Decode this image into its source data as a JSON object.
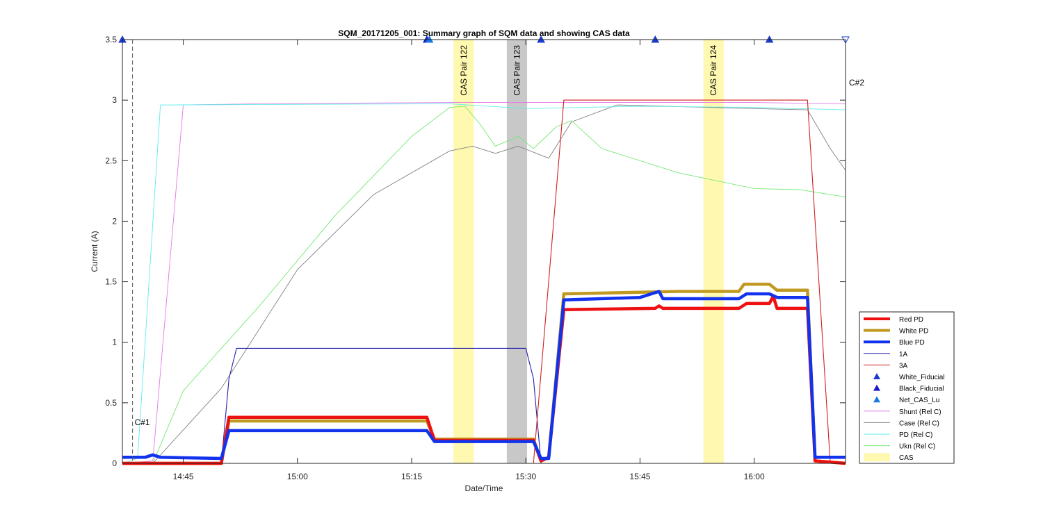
{
  "chart_data": {
    "type": "line",
    "title": "SQM_20171205_001: Summary graph of SQM data and showing CAS data",
    "xlabel": "Date/Time",
    "ylabel": "Current (A)",
    "xlim": [
      "14:37",
      "16:12"
    ],
    "ylim": [
      0,
      3.5
    ],
    "x_ticks": [
      "14:45",
      "15:00",
      "15:15",
      "15:30",
      "15:45",
      "16:00"
    ],
    "y_ticks": [
      0,
      0.5,
      1,
      1.5,
      2,
      2.5,
      3,
      3.5
    ],
    "y_tick_labels": [
      "0",
      "0.5",
      "1",
      "1.5",
      "2",
      "2.5",
      "3",
      "3.5"
    ],
    "grid": false,
    "legend_position": "bottom-right outside",
    "bands": [
      {
        "label": "CAS Pair 122",
        "start": "15:20:30",
        "end": "15:23:10",
        "color": "#fff8b0"
      },
      {
        "label": "CAS Pair 123",
        "start": "15:27:30",
        "end": "15:30:10",
        "color": "#c8c8c8"
      },
      {
        "label": "CAS Pair 124",
        "start": "15:53:20",
        "end": "15:56:00",
        "color": "#fff8b0"
      }
    ],
    "vlines": [
      {
        "label": "C#1",
        "x": "14:38:20",
        "color": "#555555"
      },
      {
        "label": "C#2",
        "x": "16:12:00",
        "color": "#555555"
      }
    ],
    "series": [
      {
        "name": "Shunt (Rel C)",
        "color": "#e478e4",
        "width": 0.9,
        "points": [
          [
            "14:37",
            0
          ],
          [
            "14:41",
            0.02
          ],
          [
            "14:45",
            2.96
          ],
          [
            "14:55",
            2.97
          ],
          [
            "15:20",
            2.98
          ],
          [
            "15:40",
            2.98
          ],
          [
            "16:00",
            2.98
          ],
          [
            "16:12",
            2.97
          ]
        ]
      },
      {
        "name": "Case (Rel C)",
        "color": "#808080",
        "width": 0.9,
        "points": [
          [
            "14:41",
            0
          ],
          [
            "14:50",
            0.62
          ],
          [
            "15:00",
            1.6
          ],
          [
            "15:10",
            2.22
          ],
          [
            "15:20",
            2.58
          ],
          [
            "15:23",
            2.62
          ],
          [
            "15:26",
            2.56
          ],
          [
            "15:29",
            2.62
          ],
          [
            "15:33",
            2.52
          ],
          [
            "15:36",
            2.82
          ],
          [
            "15:42",
            2.96
          ],
          [
            "16:00",
            2.93
          ],
          [
            "16:07",
            2.92
          ],
          [
            "16:10",
            2.6
          ],
          [
            "16:12",
            2.42
          ]
        ]
      },
      {
        "name": "PD (Rel C)",
        "color": "#5eeeee",
        "width": 0.9,
        "points": [
          [
            "14:37",
            0
          ],
          [
            "14:39",
            0.04
          ],
          [
            "14:42",
            2.96
          ],
          [
            "15:20",
            2.97
          ],
          [
            "15:30",
            2.93
          ],
          [
            "15:45",
            2.95
          ],
          [
            "16:00",
            2.94
          ],
          [
            "16:12",
            2.92
          ]
        ]
      },
      {
        "name": "Ukn (Rel C)",
        "color": "#74e874",
        "width": 0.9,
        "points": [
          [
            "14:41",
            0
          ],
          [
            "14:45",
            0.6
          ],
          [
            "14:55",
            1.3
          ],
          [
            "15:05",
            2.05
          ],
          [
            "15:15",
            2.7
          ],
          [
            "15:20",
            2.94
          ],
          [
            "15:22",
            2.95
          ],
          [
            "15:24",
            2.8
          ],
          [
            "15:26",
            2.62
          ],
          [
            "15:29",
            2.7
          ],
          [
            "15:31",
            2.6
          ],
          [
            "15:34",
            2.78
          ],
          [
            "15:36",
            2.83
          ],
          [
            "15:40",
            2.6
          ],
          [
            "15:50",
            2.4
          ],
          [
            "16:00",
            2.27
          ],
          [
            "16:06",
            2.26
          ],
          [
            "16:12",
            2.2
          ]
        ]
      },
      {
        "name": "1A",
        "color": "#1f1fa8",
        "width": 1.1,
        "points": [
          [
            "14:37",
            0
          ],
          [
            "14:50",
            0
          ],
          [
            "14:51",
            0.7
          ],
          [
            "14:52",
            0.95
          ],
          [
            "15:30",
            0.95
          ],
          [
            "15:31",
            0.7
          ],
          [
            "15:32",
            0
          ],
          [
            "16:12",
            0
          ]
        ]
      },
      {
        "name": "3A",
        "color": "#d11f1f",
        "width": 1.1,
        "points": [
          [
            "14:37",
            0
          ],
          [
            "15:31",
            0
          ],
          [
            "15:35",
            3.0
          ],
          [
            "16:07",
            3.0
          ],
          [
            "16:10",
            0
          ],
          [
            "16:12",
            0
          ]
        ]
      },
      {
        "name": "White PD",
        "color": "#c09a20",
        "width": 4.5,
        "points": [
          [
            "14:37",
            0
          ],
          [
            "14:50",
            0
          ],
          [
            "14:51",
            0.35
          ],
          [
            "15:17",
            0.35
          ],
          [
            "15:18",
            0.2
          ],
          [
            "15:31",
            0.2
          ],
          [
            "15:32",
            0.02
          ],
          [
            "15:33",
            0.05
          ],
          [
            "15:35",
            1.4
          ],
          [
            "15:50",
            1.42
          ],
          [
            "15:58",
            1.42
          ],
          [
            "15:58:40",
            1.48
          ],
          [
            "16:02",
            1.48
          ],
          [
            "16:03",
            1.43
          ],
          [
            "16:07",
            1.43
          ],
          [
            "16:08",
            0.02
          ],
          [
            "16:12",
            0
          ]
        ]
      },
      {
        "name": "Red PD",
        "color": "#ee1111",
        "width": 4.5,
        "points": [
          [
            "14:37",
            0
          ],
          [
            "14:50",
            0
          ],
          [
            "14:51",
            0.38
          ],
          [
            "15:17",
            0.38
          ],
          [
            "15:18",
            0.19
          ],
          [
            "15:31",
            0.19
          ],
          [
            "15:32",
            0.02
          ],
          [
            "15:33",
            0.05
          ],
          [
            "15:35",
            1.27
          ],
          [
            "15:47",
            1.28
          ],
          [
            "15:47:30",
            1.3
          ],
          [
            "15:48",
            1.28
          ],
          [
            "15:58",
            1.28
          ],
          [
            "15:59",
            1.32
          ],
          [
            "16:02",
            1.32
          ],
          [
            "16:02:30",
            1.38
          ],
          [
            "16:03",
            1.28
          ],
          [
            "16:07",
            1.28
          ],
          [
            "16:08",
            0.02
          ],
          [
            "16:12",
            0
          ]
        ]
      },
      {
        "name": "Blue PD",
        "color": "#1133ee",
        "width": 4.5,
        "points": [
          [
            "14:37",
            0.05
          ],
          [
            "14:40",
            0.05
          ],
          [
            "14:41",
            0.07
          ],
          [
            "14:42",
            0.05
          ],
          [
            "14:50",
            0.04
          ],
          [
            "14:51",
            0.27
          ],
          [
            "15:17",
            0.27
          ],
          [
            "15:18",
            0.18
          ],
          [
            "15:31",
            0.18
          ],
          [
            "15:32",
            0.04
          ],
          [
            "15:33",
            0.04
          ],
          [
            "15:35",
            1.35
          ],
          [
            "15:45",
            1.37
          ],
          [
            "15:47:30",
            1.42
          ],
          [
            "15:48",
            1.36
          ],
          [
            "15:58",
            1.36
          ],
          [
            "15:59",
            1.4
          ],
          [
            "16:02",
            1.4
          ],
          [
            "16:03",
            1.37
          ],
          [
            "16:07",
            1.37
          ],
          [
            "16:08",
            0.05
          ],
          [
            "16:12",
            0.05
          ]
        ]
      }
    ],
    "markers": [
      {
        "series": "White_Fiducial",
        "color": "#1a3ccc",
        "filled": true,
        "points": [
          [
            "14:37",
            3.5
          ],
          [
            "15:32",
            3.5
          ],
          [
            "15:47",
            3.5
          ],
          [
            "16:02",
            3.5
          ]
        ]
      },
      {
        "series": "Black_Fiducial",
        "color": "#1a1acc",
        "filled": true,
        "points": [
          [
            "15:17",
            3.5
          ]
        ]
      },
      {
        "series": "Net_CAS_Lu",
        "color": "#1a7ae0",
        "filled": true,
        "points": [
          [
            "15:17:20",
            3.5
          ]
        ]
      },
      {
        "series": "C#2 marker",
        "color": "#1a3ccc",
        "filled": false,
        "points": [
          [
            "16:12",
            3.5
          ]
        ]
      }
    ],
    "legend": [
      {
        "label": "Red PD",
        "color": "#ee1111",
        "style": "thick"
      },
      {
        "label": "White PD",
        "color": "#c09a20",
        "style": "thick"
      },
      {
        "label": "Blue PD",
        "color": "#1133ee",
        "style": "thick"
      },
      {
        "label": "1A",
        "color": "#1f1fa8",
        "style": "thin"
      },
      {
        "label": "3A",
        "color": "#d11f1f",
        "style": "thin"
      },
      {
        "label": "White_Fiducial",
        "color": "#1a3ccc",
        "style": "marker"
      },
      {
        "label": "Black_Fiducial",
        "color": "#1a1acc",
        "style": "marker"
      },
      {
        "label": "Net_CAS_Lu",
        "color": "#1a7ae0",
        "style": "marker"
      },
      {
        "label": "Shunt (Rel C)",
        "color": "#e478e4",
        "style": "thin"
      },
      {
        "label": "Case (Rel C)",
        "color": "#808080",
        "style": "thin"
      },
      {
        "label": "PD (Rel C)",
        "color": "#5eeeee",
        "style": "thin"
      },
      {
        "label": "Ukn (Rel C)",
        "color": "#74e874",
        "style": "thin"
      },
      {
        "label": "CAS",
        "color": "#fff8b0",
        "style": "patch"
      }
    ]
  }
}
